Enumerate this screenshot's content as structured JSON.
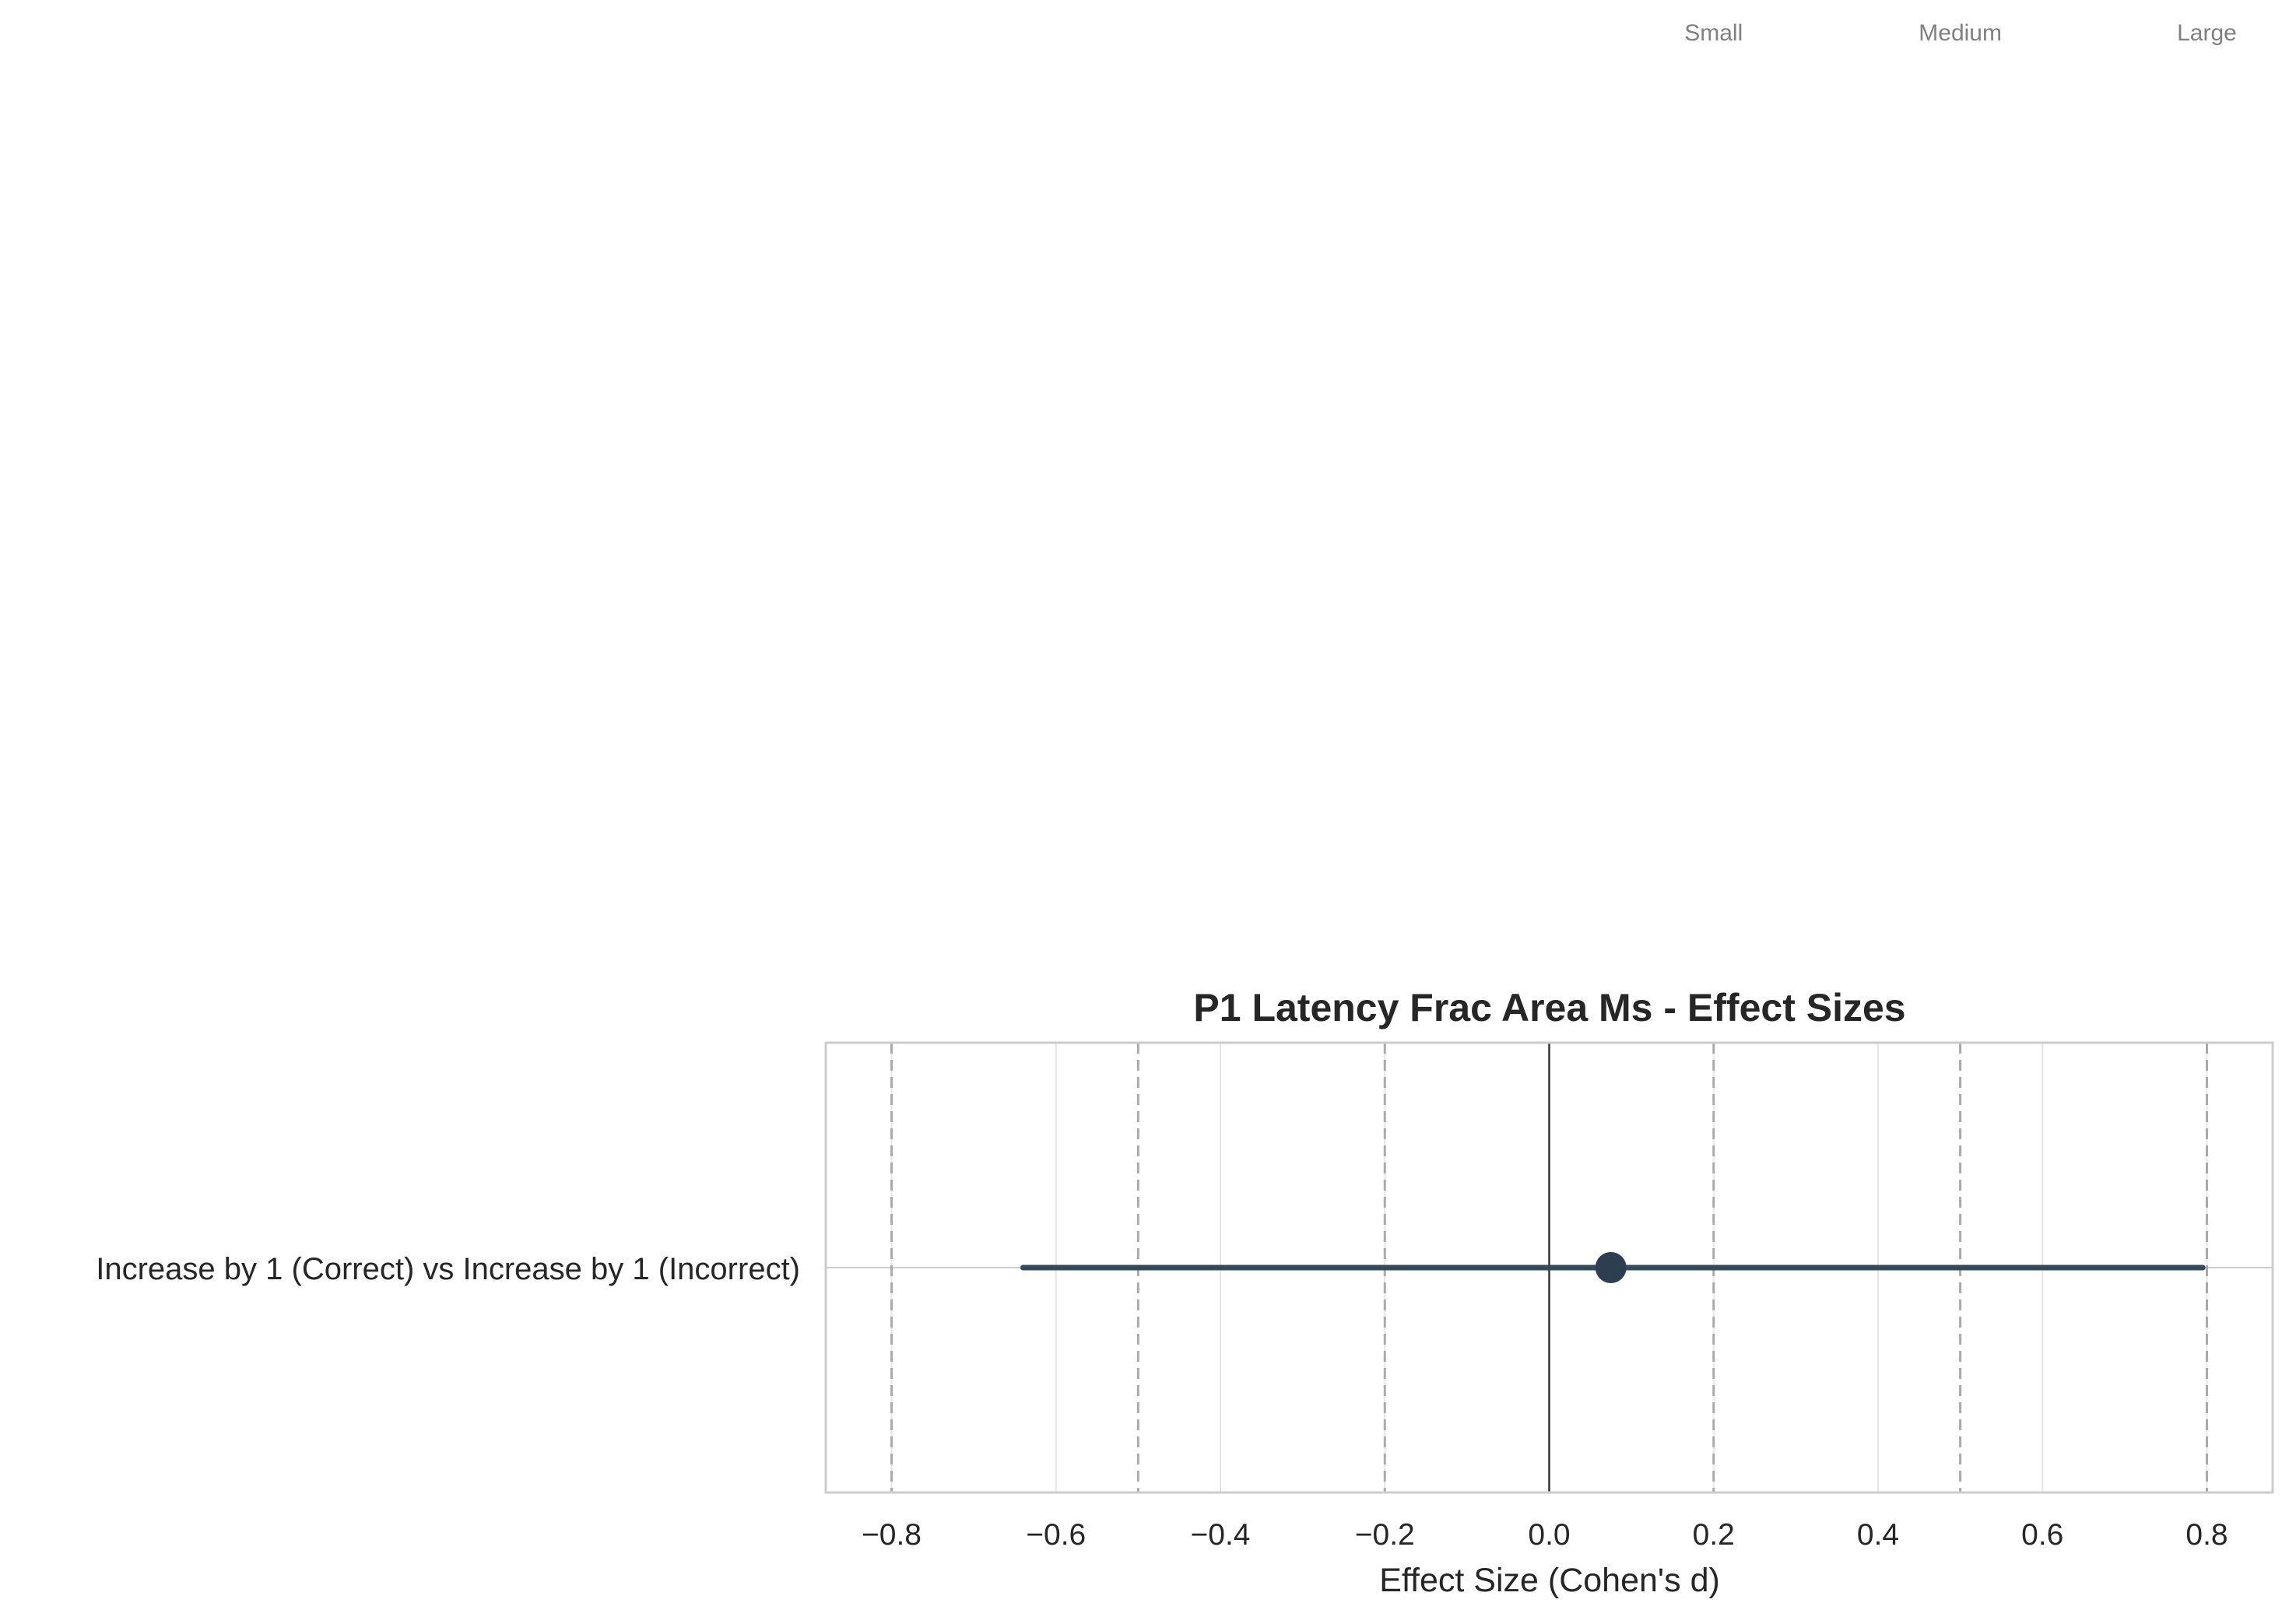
{
  "chart_data": {
    "type": "forest",
    "title": "P1 Latency Frac Area Ms - Effect Sizes",
    "xlabel": "Effect Size (Cohen's d)",
    "ylabel": "",
    "xlim": [
      -0.88,
      0.88
    ],
    "xticks": [
      -0.8,
      -0.6,
      -0.4,
      -0.2,
      0.0,
      0.2,
      0.4,
      0.6,
      0.8
    ],
    "xtick_labels": [
      "−0.8",
      "−0.6",
      "−0.4",
      "−0.2",
      "0.0",
      "0.2",
      "0.4",
      "0.6",
      "0.8"
    ],
    "grid": true,
    "reference_lines": {
      "zero": 0.0,
      "thresholds": [
        -0.8,
        -0.5,
        -0.2,
        0.2,
        0.5,
        0.8
      ]
    },
    "threshold_labels": [
      {
        "label": "Small",
        "value": 0.2
      },
      {
        "label": "Medium",
        "value": 0.5
      },
      {
        "label": "Large",
        "value": 0.8
      }
    ],
    "rows": [
      {
        "label": "Increase by 1 (Correct) vs Increase by 1 (Incorrect)",
        "estimate": 0.075,
        "ci_low": -0.64,
        "ci_high": 0.795
      }
    ],
    "colors": {
      "point": "#2c3e50",
      "ci": "#34495e",
      "zero_line": "#333333",
      "threshold_line": "#aaaaaa",
      "grid": "#e6e6e6",
      "frame": "#cccccc",
      "threshold_label": "#808080"
    }
  }
}
